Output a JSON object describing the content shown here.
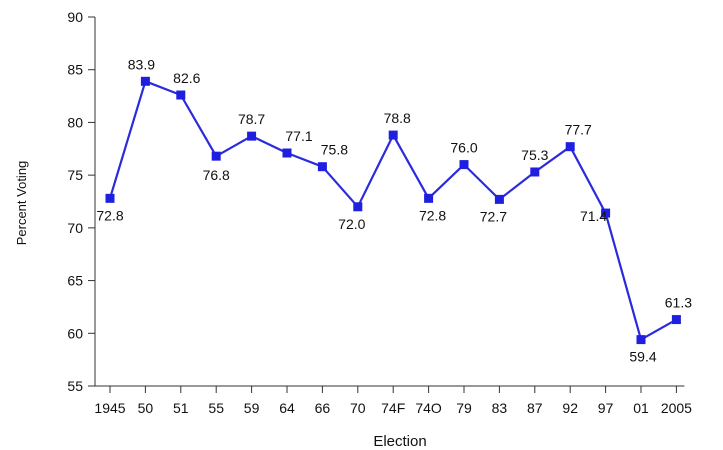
{
  "chart_data": {
    "type": "line",
    "title": "",
    "xlabel": "Election",
    "ylabel": "Percent Voting",
    "categories": [
      "1945",
      "50",
      "51",
      "55",
      "59",
      "64",
      "66",
      "70",
      "74F",
      "74O",
      "79",
      "83",
      "87",
      "92",
      "97",
      "01",
      "2005"
    ],
    "series": [
      {
        "values": [
          72.8,
          83.9,
          82.6,
          76.8,
          78.7,
          77.1,
          75.8,
          72.0,
          78.8,
          72.8,
          76.0,
          72.7,
          75.3,
          77.7,
          71.4,
          59.4,
          61.3
        ]
      }
    ],
    "data_labels": [
      "72.8",
      "83.9",
      "82.6",
      "76.8",
      "78.7",
      "77.1",
      "75.8",
      "72.0",
      "78.8",
      "72.8",
      "76.0",
      "72.7",
      "75.3",
      "77.7",
      "71.4",
      "59.4",
      "61.3"
    ],
    "yticks": [
      55,
      60,
      65,
      70,
      75,
      80,
      85,
      90
    ],
    "ylim": [
      55,
      90
    ],
    "grid": false,
    "colors": {
      "line": "#2b2bdd",
      "marker": "#1f1fe0",
      "axis": "#333333"
    }
  }
}
